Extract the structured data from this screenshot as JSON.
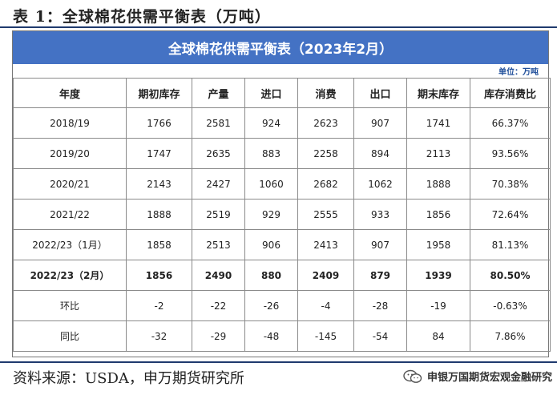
{
  "caption": "表 1：全球棉花供需平衡表（万吨）",
  "banner_title": "全球棉花供需平衡表（2023年2月）",
  "unit": "单位：万吨",
  "headers": [
    "年度",
    "期初库存",
    "产量",
    "进口",
    "消费",
    "出口",
    "期末库存",
    "库存消费比"
  ],
  "rows": [
    [
      "2018/19",
      "1766",
      "2581",
      "924",
      "2623",
      "907",
      "1741",
      "66.37%"
    ],
    [
      "2019/20",
      "1747",
      "2635",
      "883",
      "2258",
      "894",
      "2113",
      "93.56%"
    ],
    [
      "2020/21",
      "2143",
      "2427",
      "1060",
      "2682",
      "1062",
      "1888",
      "70.38%"
    ],
    [
      "2021/22",
      "1888",
      "2519",
      "929",
      "2555",
      "933",
      "1856",
      "72.64%"
    ],
    [
      "2022/23（1月）",
      "1858",
      "2513",
      "906",
      "2413",
      "907",
      "1958",
      "81.13%"
    ],
    [
      "2022/23（2月）",
      "1856",
      "2490",
      "880",
      "2409",
      "879",
      "1939",
      "80.50%"
    ],
    [
      "环比",
      "-2",
      "-22",
      "-26",
      "-4",
      "-28",
      "-19",
      "-0.63%"
    ],
    [
      "同比",
      "-32",
      "-29",
      "-48",
      "-145",
      "-54",
      "84",
      "7.86%"
    ]
  ],
  "source": "资料来源：USDA，申万期货研究所",
  "brand": "申银万国期货宏观金融研究",
  "brand_icon": "wechat-icon",
  "colors": {
    "banner": "#4472c4",
    "rule": "#1f3a6e",
    "unit_text": "#1f4e9a"
  }
}
